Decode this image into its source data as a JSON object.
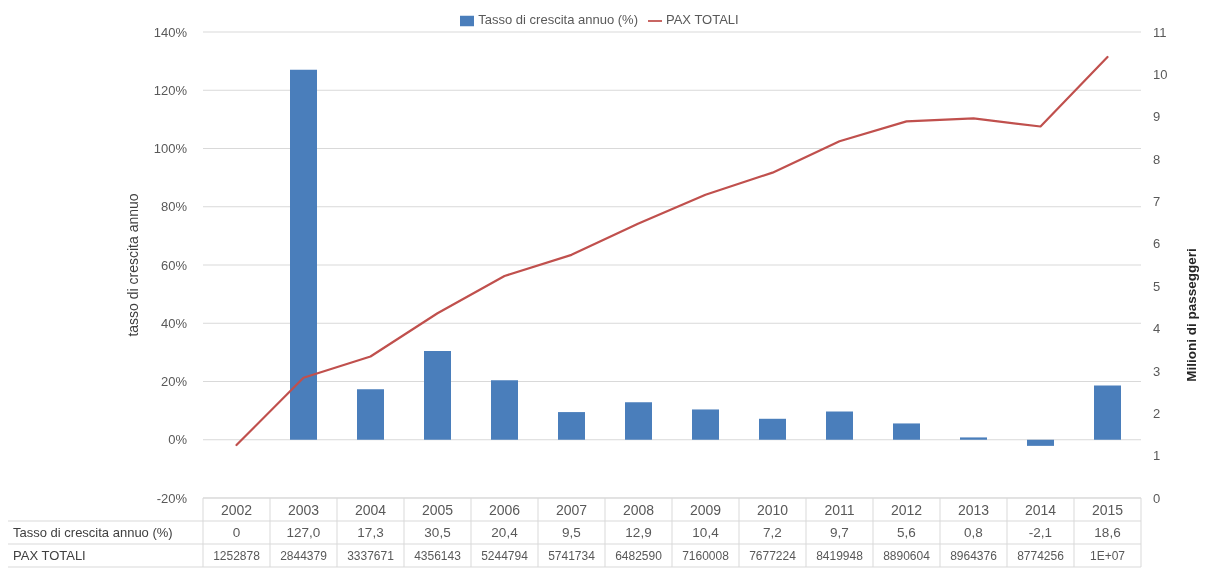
{
  "chart_data": {
    "type": "bar",
    "ylabel": "tasso di crescita annuo",
    "y2label": "Milioni di passeggeri",
    "categories": [
      "2002",
      "2003",
      "2004",
      "2005",
      "2006",
      "2007",
      "2008",
      "2009",
      "2010",
      "2011",
      "2012",
      "2013",
      "2014",
      "2015"
    ],
    "series": [
      {
        "name": "Tasso di crescita annuo (%)",
        "color": "#4a7ebb",
        "values": [
          0,
          127.0,
          17.3,
          30.5,
          20.4,
          9.5,
          12.9,
          10.4,
          7.2,
          9.7,
          5.6,
          0.8,
          -2.1,
          18.6
        ],
        "value_labels": [
          "0",
          "127,0",
          "17,3",
          "30,5",
          "20,4",
          "9,5",
          "12,9",
          "10,4",
          "7,2",
          "9,7",
          "5,6",
          "0,8",
          "-2,1",
          "18,6"
        ]
      },
      {
        "name": "PAX TOTALI",
        "type": "line",
        "axis": "y2",
        "color": "#c0504d",
        "marker": "none",
        "values": [
          1.25,
          2.84,
          3.34,
          4.36,
          5.24,
          5.74,
          6.48,
          7.16,
          7.68,
          8.42,
          8.89,
          8.96,
          8.77,
          10.41
        ]
      }
    ],
    "annotations": [
      "1252878",
      "2844379",
      "3337671",
      "4356143",
      "5244794",
      "5741734",
      "6482590",
      "7160008",
      "7677224",
      "8419948",
      "8890604",
      "8964376",
      "8774256",
      "1E+07"
    ],
    "ylim": [
      -20,
      140
    ],
    "yticks": [
      {
        "value": -20,
        "label": "-20%"
      },
      {
        "value": 0,
        "label": "0%"
      },
      {
        "value": 20,
        "label": "20%"
      },
      {
        "value": 40,
        "label": "40%"
      },
      {
        "value": 60,
        "label": "60%"
      },
      {
        "value": 80,
        "label": "80%"
      },
      {
        "value": 100,
        "label": "100%"
      },
      {
        "value": 120,
        "label": "120%"
      },
      {
        "value": 140,
        "label": "140%"
      }
    ],
    "y2lim": [
      0,
      11
    ],
    "y2ticks": [
      0,
      1,
      2,
      3,
      4,
      5,
      6,
      7,
      8,
      9,
      10,
      11
    ],
    "grid": "y",
    "legend": "top"
  }
}
